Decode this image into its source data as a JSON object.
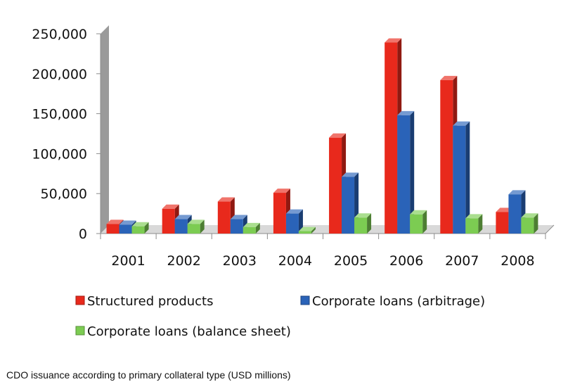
{
  "chart_data": {
    "type": "bar",
    "categories": [
      "2001",
      "2002",
      "2003",
      "2004",
      "2005",
      "2006",
      "2007",
      "2008"
    ],
    "series": [
      {
        "name": "Structured products",
        "values": [
          12000,
          31000,
          40000,
          51000,
          120000,
          239000,
          192000,
          27000
        ],
        "color": "#e8291c"
      },
      {
        "name": "Corporate loans (arbitrage)",
        "values": [
          11000,
          18000,
          18000,
          25000,
          71000,
          148000,
          135000,
          49000
        ],
        "color": "#2a63b8"
      },
      {
        "name": "Corporate loans (balance sheet)",
        "values": [
          9000,
          12000,
          8000,
          3000,
          20000,
          24000,
          19000,
          20000
        ],
        "color": "#7ccc52"
      }
    ],
    "yticks": [
      "0",
      "50,000",
      "100,000",
      "150,000",
      "200,000",
      "250,000"
    ],
    "ylim": [
      0,
      250000
    ],
    "legend_position": "bottom",
    "title": "",
    "xlabel": "",
    "ylabel": "",
    "grid": false
  },
  "caption": "CDO issuance according to primary collateral type (USD millions)"
}
